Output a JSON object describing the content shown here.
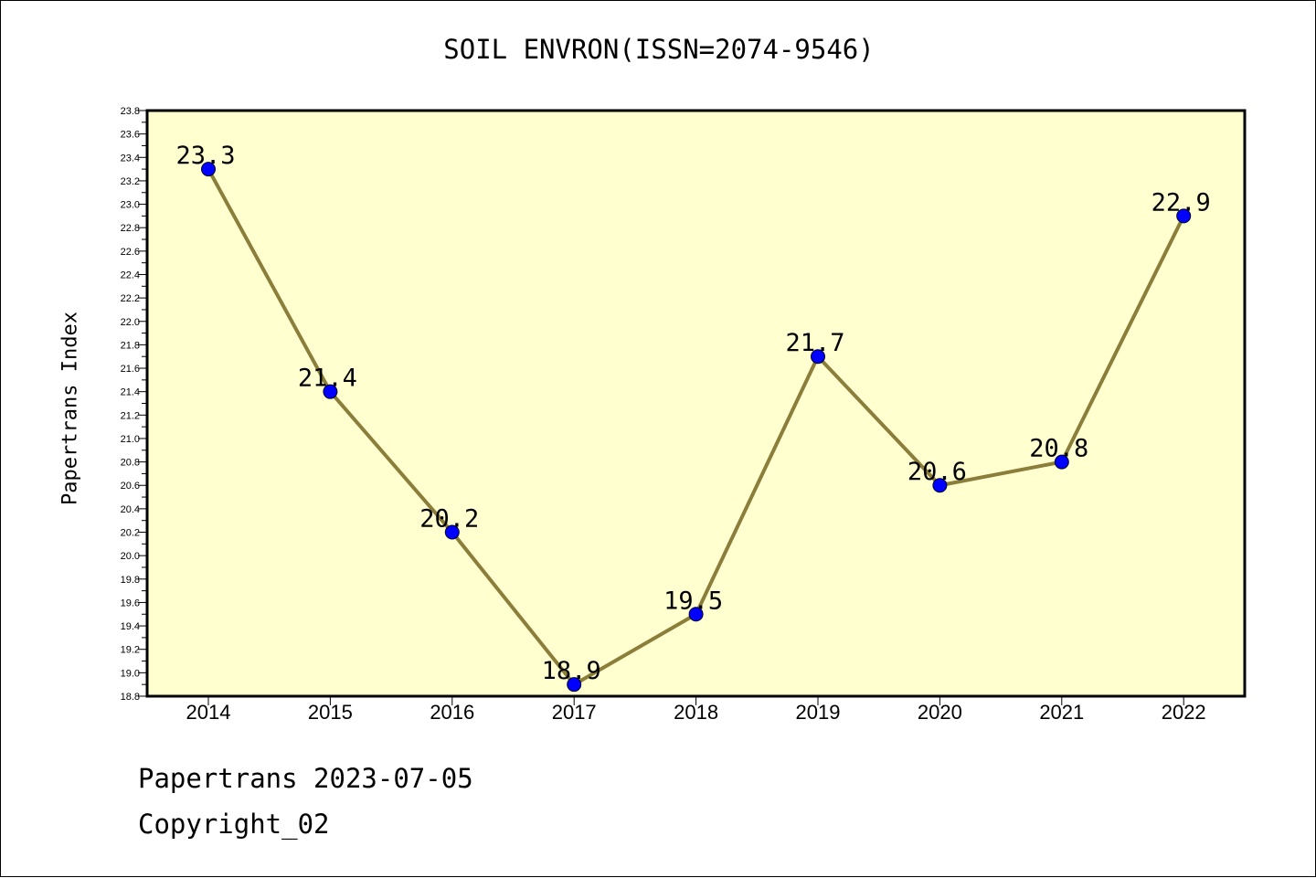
{
  "chart_data": {
    "type": "line",
    "title": "SOIL ENVRON(ISSN=2074-9546)",
    "ylabel": "Papertrans Index",
    "xlabel": "",
    "categories": [
      "2014",
      "2015",
      "2016",
      "2017",
      "2018",
      "2019",
      "2020",
      "2021",
      "2022"
    ],
    "values": [
      23.3,
      21.4,
      20.2,
      18.9,
      19.5,
      21.7,
      20.6,
      20.8,
      22.9
    ],
    "data_labels": [
      "23.3",
      "21.4",
      "20.2",
      "18.9",
      "19.5",
      "21.7",
      "20.6",
      "20.8",
      "22.9"
    ],
    "ylim": [
      18.8,
      23.8
    ],
    "y_ticks": [
      "18.8",
      "19.0",
      "19.2",
      "19.4",
      "19.6",
      "19.8",
      "20.0",
      "20.2",
      "20.4",
      "20.6",
      "20.8",
      "21.0",
      "21.2",
      "21.4",
      "21.6",
      "21.8",
      "22.0",
      "22.2",
      "22.4",
      "22.6",
      "22.8",
      "23.0",
      "23.2",
      "23.4",
      "23.6",
      "23.8"
    ],
    "grid": false,
    "legend": "none",
    "colors": {
      "plot_background": "#ffffd0",
      "line": "#8b7d3a",
      "marker": "#0000ff"
    }
  },
  "footer": {
    "line1": "Papertrans 2023-07-05",
    "line2": "Copyright_02"
  }
}
